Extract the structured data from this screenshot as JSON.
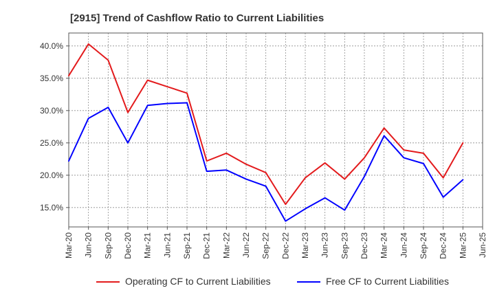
{
  "chart_data": {
    "type": "line",
    "title": "[2915]  Trend of Cashflow Ratio to Current Liabilities",
    "xlabel": "",
    "ylabel": "",
    "categories": [
      "Mar-20",
      "Jun-20",
      "Sep-20",
      "Dec-20",
      "Mar-21",
      "Jun-21",
      "Sep-21",
      "Dec-21",
      "Mar-22",
      "Jun-22",
      "Sep-22",
      "Dec-22",
      "Mar-23",
      "Jun-23",
      "Sep-23",
      "Dec-23",
      "Mar-24",
      "Jun-24",
      "Sep-24",
      "Dec-24",
      "Mar-25",
      "Jun-25"
    ],
    "ylim": [
      12,
      42
    ],
    "yticks": [
      15,
      20,
      25,
      30,
      35,
      40
    ],
    "ytick_labels": [
      "15.0%",
      "20.0%",
      "25.0%",
      "30.0%",
      "35.0%",
      "40.0%"
    ],
    "grid": true,
    "legend_position": "bottom",
    "series": [
      {
        "name": "Operating CF to Current Liabilities",
        "color": "#e31a1c",
        "values": [
          35.4,
          40.3,
          37.8,
          29.7,
          34.7,
          33.7,
          32.7,
          22.2,
          23.4,
          21.7,
          20.4,
          15.5,
          19.6,
          21.9,
          19.4,
          22.7,
          27.3,
          23.9,
          23.4,
          19.6,
          25.0,
          null
        ]
      },
      {
        "name": "Free CF to Current Liabilities",
        "color": "#0000ff",
        "values": [
          22.2,
          28.8,
          30.5,
          25.0,
          30.8,
          31.1,
          31.2,
          20.6,
          20.8,
          19.4,
          18.3,
          12.9,
          14.8,
          16.5,
          14.6,
          19.8,
          26.1,
          22.7,
          21.8,
          16.6,
          19.3,
          null
        ]
      }
    ]
  }
}
